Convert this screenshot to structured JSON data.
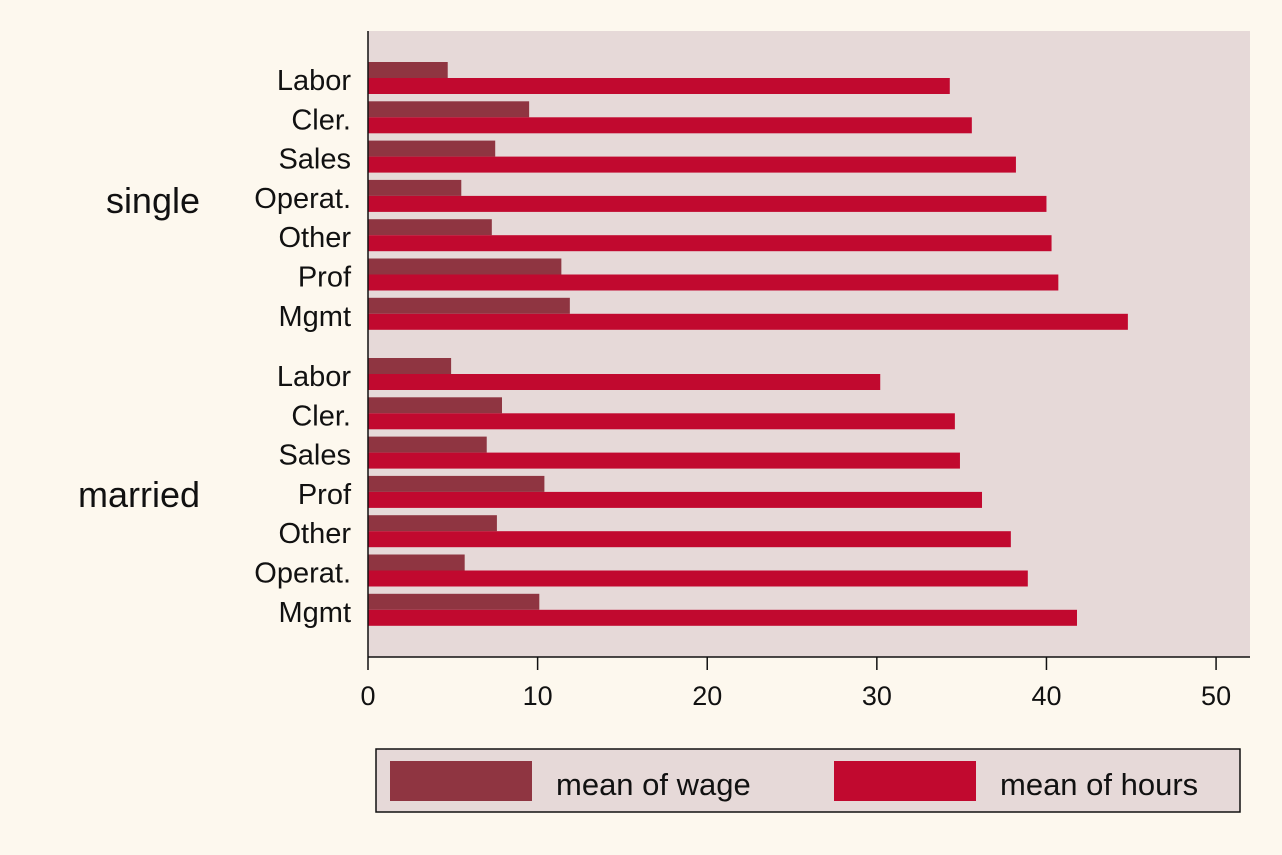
{
  "chart_data": {
    "type": "bar",
    "orientation": "horizontal",
    "groups": [
      {
        "name": "single",
        "categories": [
          "Labor",
          "Cler.",
          "Sales",
          "Operat.",
          "Other",
          "Prof",
          "Mgmt"
        ],
        "series": [
          {
            "name": "mean of wage",
            "values": [
              4.7,
              9.5,
              7.5,
              5.5,
              7.3,
              11.4,
              11.9
            ]
          },
          {
            "name": "mean of hours",
            "values": [
              34.3,
              35.6,
              38.2,
              40.0,
              40.3,
              40.7,
              44.8
            ]
          }
        ]
      },
      {
        "name": "married",
        "categories": [
          "Labor",
          "Cler.",
          "Sales",
          "Prof",
          "Other",
          "Operat.",
          "Mgmt"
        ],
        "series": [
          {
            "name": "mean of wage",
            "values": [
              4.9,
              7.9,
              7.0,
              10.4,
              7.6,
              5.7,
              10.1
            ]
          },
          {
            "name": "mean of hours",
            "values": [
              30.2,
              34.6,
              34.9,
              36.2,
              37.9,
              38.9,
              41.8
            ]
          }
        ]
      }
    ],
    "xlim": [
      0,
      52
    ],
    "x_ticks": [
      "0",
      "10",
      "20",
      "30",
      "40",
      "50"
    ],
    "legend": {
      "position": "bottom",
      "entries": [
        "mean of wage",
        "mean of hours"
      ]
    },
    "colors": {
      "mean of wage": "#8f3541",
      "mean of hours": "#c1092f",
      "plot_background": "#e6d9d8",
      "page_background": "#fdf8ee"
    },
    "grid": false
  }
}
